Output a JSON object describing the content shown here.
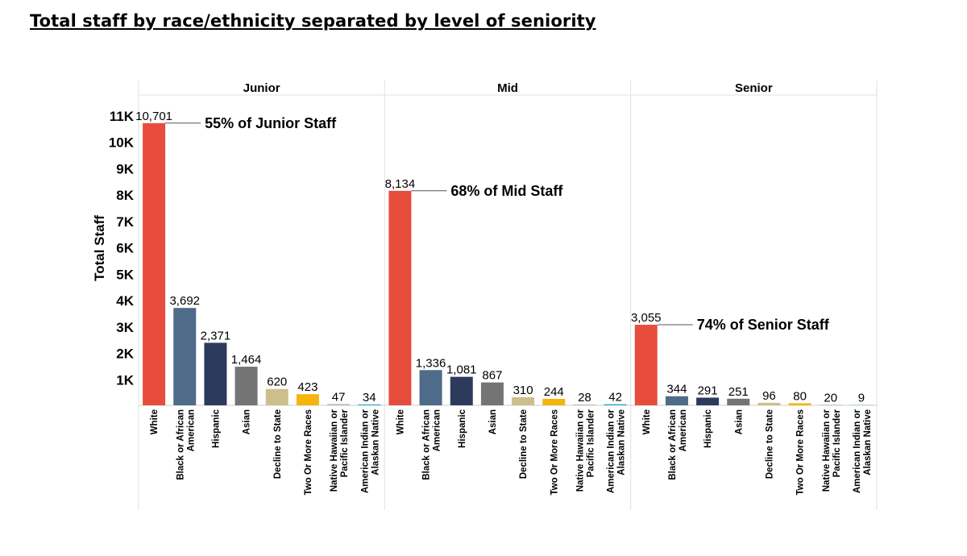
{
  "title": "Total staff by race/ethnicity separated by level of seniority",
  "chart_data": {
    "type": "bar",
    "ylabel": "Total Staff",
    "ylim": [
      0,
      11000
    ],
    "y_ticks": [
      {
        "value": 1000,
        "label": "1K"
      },
      {
        "value": 2000,
        "label": "2K"
      },
      {
        "value": 3000,
        "label": "3K"
      },
      {
        "value": 4000,
        "label": "4K"
      },
      {
        "value": 5000,
        "label": "5K"
      },
      {
        "value": 6000,
        "label": "6K"
      },
      {
        "value": 7000,
        "label": "7K"
      },
      {
        "value": 8000,
        "label": "8K"
      },
      {
        "value": 9000,
        "label": "9K"
      },
      {
        "value": 10000,
        "label": "10K"
      },
      {
        "value": 11000,
        "label": "11K"
      }
    ],
    "categories": [
      [
        "White"
      ],
      [
        "Black or African",
        "American"
      ],
      [
        "Hispanic"
      ],
      [
        "Asian"
      ],
      [
        "Decline to State"
      ],
      [
        "Two Or More Races"
      ],
      [
        "Native Hawaiian or",
        "Pacific Islander"
      ],
      [
        "American Indian or",
        "Alaskan Native"
      ]
    ],
    "colors": [
      "#e84c3d",
      "#4e6b8a",
      "#2c3a5c",
      "#747474",
      "#cdbf8c",
      "#f5b50f",
      "#b3b3b3",
      "#29aacf"
    ],
    "panels": [
      {
        "name": "Junior",
        "values": [
          10701,
          3692,
          2371,
          1464,
          620,
          423,
          47,
          34
        ],
        "value_labels": [
          "10,701",
          "3,692",
          "2,371",
          "1,464",
          "620",
          "423",
          "47",
          "34"
        ],
        "annotation": "55% of Junior Staff"
      },
      {
        "name": "Mid",
        "values": [
          8134,
          1336,
          1081,
          867,
          310,
          244,
          28,
          42
        ],
        "value_labels": [
          "8,134",
          "1,336",
          "1,081",
          "867",
          "310",
          "244",
          "28",
          "42"
        ],
        "annotation": "68% of Mid Staff"
      },
      {
        "name": "Senior",
        "values": [
          3055,
          344,
          291,
          251,
          96,
          80,
          20,
          9
        ],
        "value_labels": [
          "3,055",
          "344",
          "291",
          "251",
          "96",
          "80",
          "20",
          "9"
        ],
        "annotation": "74% of Senior Staff"
      }
    ]
  }
}
